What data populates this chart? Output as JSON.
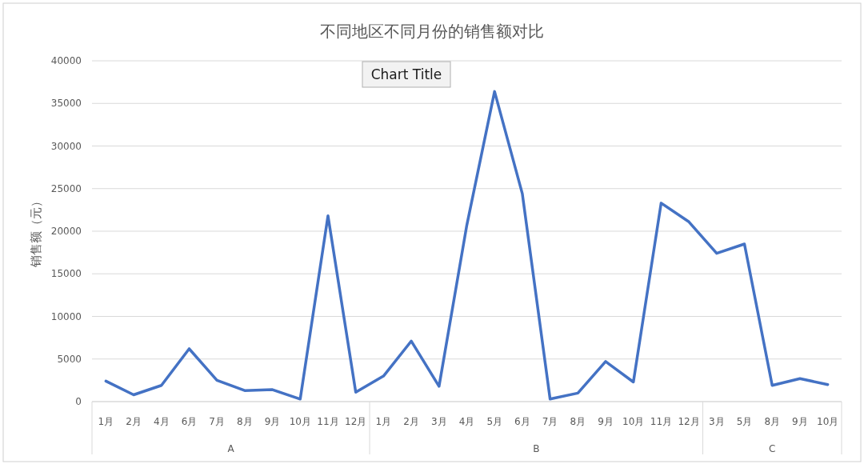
{
  "chart_data": {
    "type": "line",
    "title": "不同地区不同月份的销售额对比",
    "ylabel": "销售额（元）",
    "categories": [
      "1月",
      "2月",
      "4月",
      "6月",
      "7月",
      "8月",
      "9月",
      "10月",
      "11月",
      "12月",
      "1月",
      "2月",
      "3月",
      "4月",
      "5月",
      "6月",
      "7月",
      "8月",
      "9月",
      "10月",
      "11月",
      "12月",
      "3月",
      "5月",
      "8月",
      "9月",
      "10月"
    ],
    "series": [
      {
        "color": "#4472c4",
        "values": [
          2400,
          800,
          1900,
          6200,
          2500,
          1300,
          1400,
          300,
          21800,
          1100,
          3000,
          7100,
          1800,
          20700,
          36400,
          24400,
          300,
          1000,
          4700,
          2300,
          23300,
          21100,
          17400,
          18500,
          1900,
          2700,
          2000
        ]
      }
    ],
    "ylim": [
      0,
      40000
    ],
    "yticks": [
      0,
      5000,
      10000,
      15000,
      20000,
      25000,
      30000,
      35000,
      40000
    ],
    "grid": "y",
    "marker": "none",
    "line_style": "solid",
    "annotations": [
      "Chart Title",
      "A",
      "B",
      "C"
    ]
  }
}
